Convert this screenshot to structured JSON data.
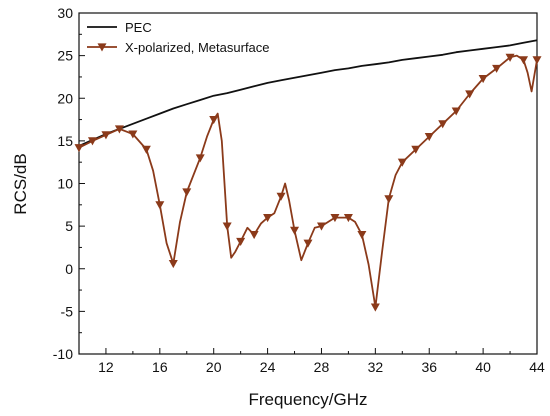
{
  "chart_data": {
    "type": "line",
    "xlabel": "Frequency/GHz",
    "ylabel": "RCS/dB",
    "xlim": [
      10,
      44
    ],
    "ylim": [
      -10,
      30
    ],
    "x_ticks": [
      12,
      16,
      20,
      24,
      28,
      32,
      36,
      40,
      44
    ],
    "y_ticks": [
      -10,
      -5,
      0,
      5,
      10,
      15,
      20,
      25,
      30
    ],
    "x_tick_labels": [
      "12",
      "16",
      "20",
      "24",
      "28",
      "32",
      "36",
      "40",
      "44"
    ],
    "y_tick_labels": [
      "-10",
      "-5",
      "0",
      "5",
      "10",
      "15",
      "20",
      "25",
      "30"
    ],
    "grid": false,
    "legend_position": "top-left",
    "series": [
      {
        "name": "PEC",
        "color": "#111111",
        "marker": "none",
        "x": [
          10,
          11,
          12,
          13,
          14,
          15,
          16,
          17,
          18,
          19,
          20,
          21,
          22,
          23,
          24,
          25,
          26,
          27,
          28,
          29,
          30,
          31,
          32,
          33,
          34,
          35,
          36,
          37,
          38,
          39,
          40,
          41,
          42,
          43,
          44
        ],
        "y": [
          14.4,
          15.1,
          15.8,
          16.4,
          17.0,
          17.6,
          18.2,
          18.8,
          19.3,
          19.8,
          20.3,
          20.6,
          21.0,
          21.4,
          21.8,
          22.1,
          22.4,
          22.7,
          23.0,
          23.3,
          23.5,
          23.8,
          24.0,
          24.2,
          24.5,
          24.7,
          24.9,
          25.1,
          25.4,
          25.6,
          25.8,
          26.0,
          26.2,
          26.5,
          26.8
        ]
      },
      {
        "name": "X-polarized, Metasurface",
        "color": "#8b3a1a",
        "marker": "triangle-down",
        "marker_color": "#8b3a1a",
        "x": [
          10,
          11,
          12,
          13,
          14,
          15,
          15.5,
          16,
          16.5,
          17,
          17.5,
          18,
          19,
          19.5,
          20,
          20.3,
          20.6,
          21,
          21.3,
          21.6,
          22,
          22.5,
          23,
          23.5,
          24,
          24.5,
          25,
          25.3,
          25.6,
          26,
          26.5,
          27,
          27.5,
          28,
          28.5,
          29,
          29.5,
          30,
          30.5,
          31,
          31.5,
          32,
          32.5,
          33,
          33.5,
          34,
          35,
          36,
          37,
          38,
          39,
          40,
          41,
          42,
          42.5,
          43,
          43.3,
          43.6,
          44
        ],
        "y": [
          14.2,
          15.0,
          15.7,
          16.4,
          15.8,
          14.0,
          11.5,
          7.5,
          3.0,
          0.6,
          5.5,
          9.0,
          13.0,
          15.5,
          17.5,
          18.2,
          15.0,
          5.0,
          1.3,
          2.0,
          3.2,
          4.8,
          4.0,
          5.3,
          6.0,
          6.5,
          8.5,
          10.0,
          8.0,
          4.5,
          1.0,
          3.0,
          4.8,
          5.0,
          5.5,
          6.0,
          6.0,
          6.0,
          5.5,
          4.0,
          0.5,
          -4.5,
          2.0,
          8.2,
          11.0,
          12.5,
          14.0,
          15.5,
          17.0,
          18.5,
          20.5,
          22.3,
          23.5,
          24.8,
          25.0,
          24.5,
          23.0,
          20.8,
          24.5
        ]
      }
    ]
  }
}
